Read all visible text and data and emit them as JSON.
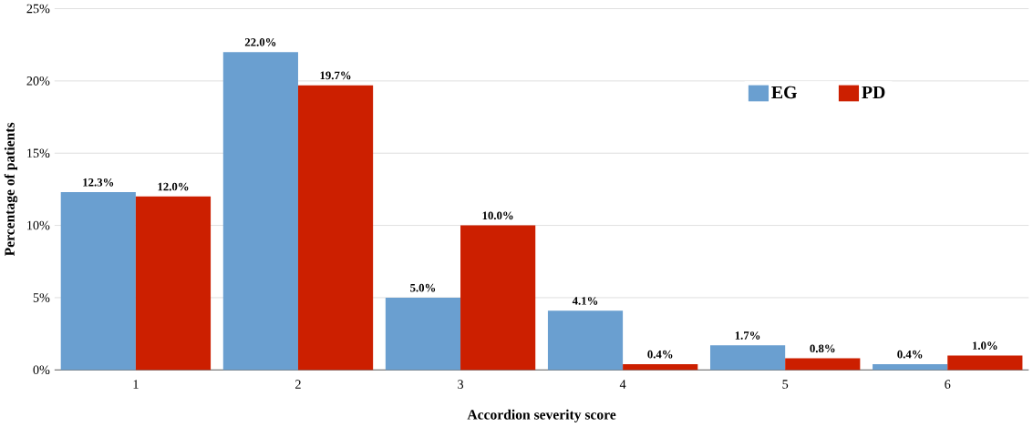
{
  "chart_data": {
    "type": "bar",
    "xlabel": "Accordion severity score",
    "ylabel": "Percentage of patients",
    "categories": [
      "1",
      "2",
      "3",
      "4",
      "5",
      "6"
    ],
    "series": [
      {
        "name": "EG",
        "color": "#6a9fd0",
        "values": [
          12.3,
          22.0,
          5.0,
          4.1,
          1.7,
          0.4
        ],
        "value_labels": [
          "12.3%",
          "22.0%",
          "5.0%",
          "4.1%",
          "1.7%",
          "0.4%"
        ]
      },
      {
        "name": "PD",
        "color": "#cc1f00",
        "values": [
          12.0,
          19.7,
          10.0,
          0.4,
          0.8,
          1.0
        ],
        "value_labels": [
          "12.0%",
          "19.7%",
          "10.0%",
          "0.4%",
          "0.8%",
          "1.0%"
        ]
      }
    ],
    "ylim": [
      0,
      25
    ],
    "yticks": [
      {
        "value": 0,
        "label": "0%"
      },
      {
        "value": 5,
        "label": "5%"
      },
      {
        "value": 10,
        "label": "10%"
      },
      {
        "value": 15,
        "label": "15%"
      },
      {
        "value": 20,
        "label": "20%"
      },
      {
        "value": 25,
        "label": "25%"
      }
    ],
    "grid": "y",
    "legend": "top right"
  }
}
